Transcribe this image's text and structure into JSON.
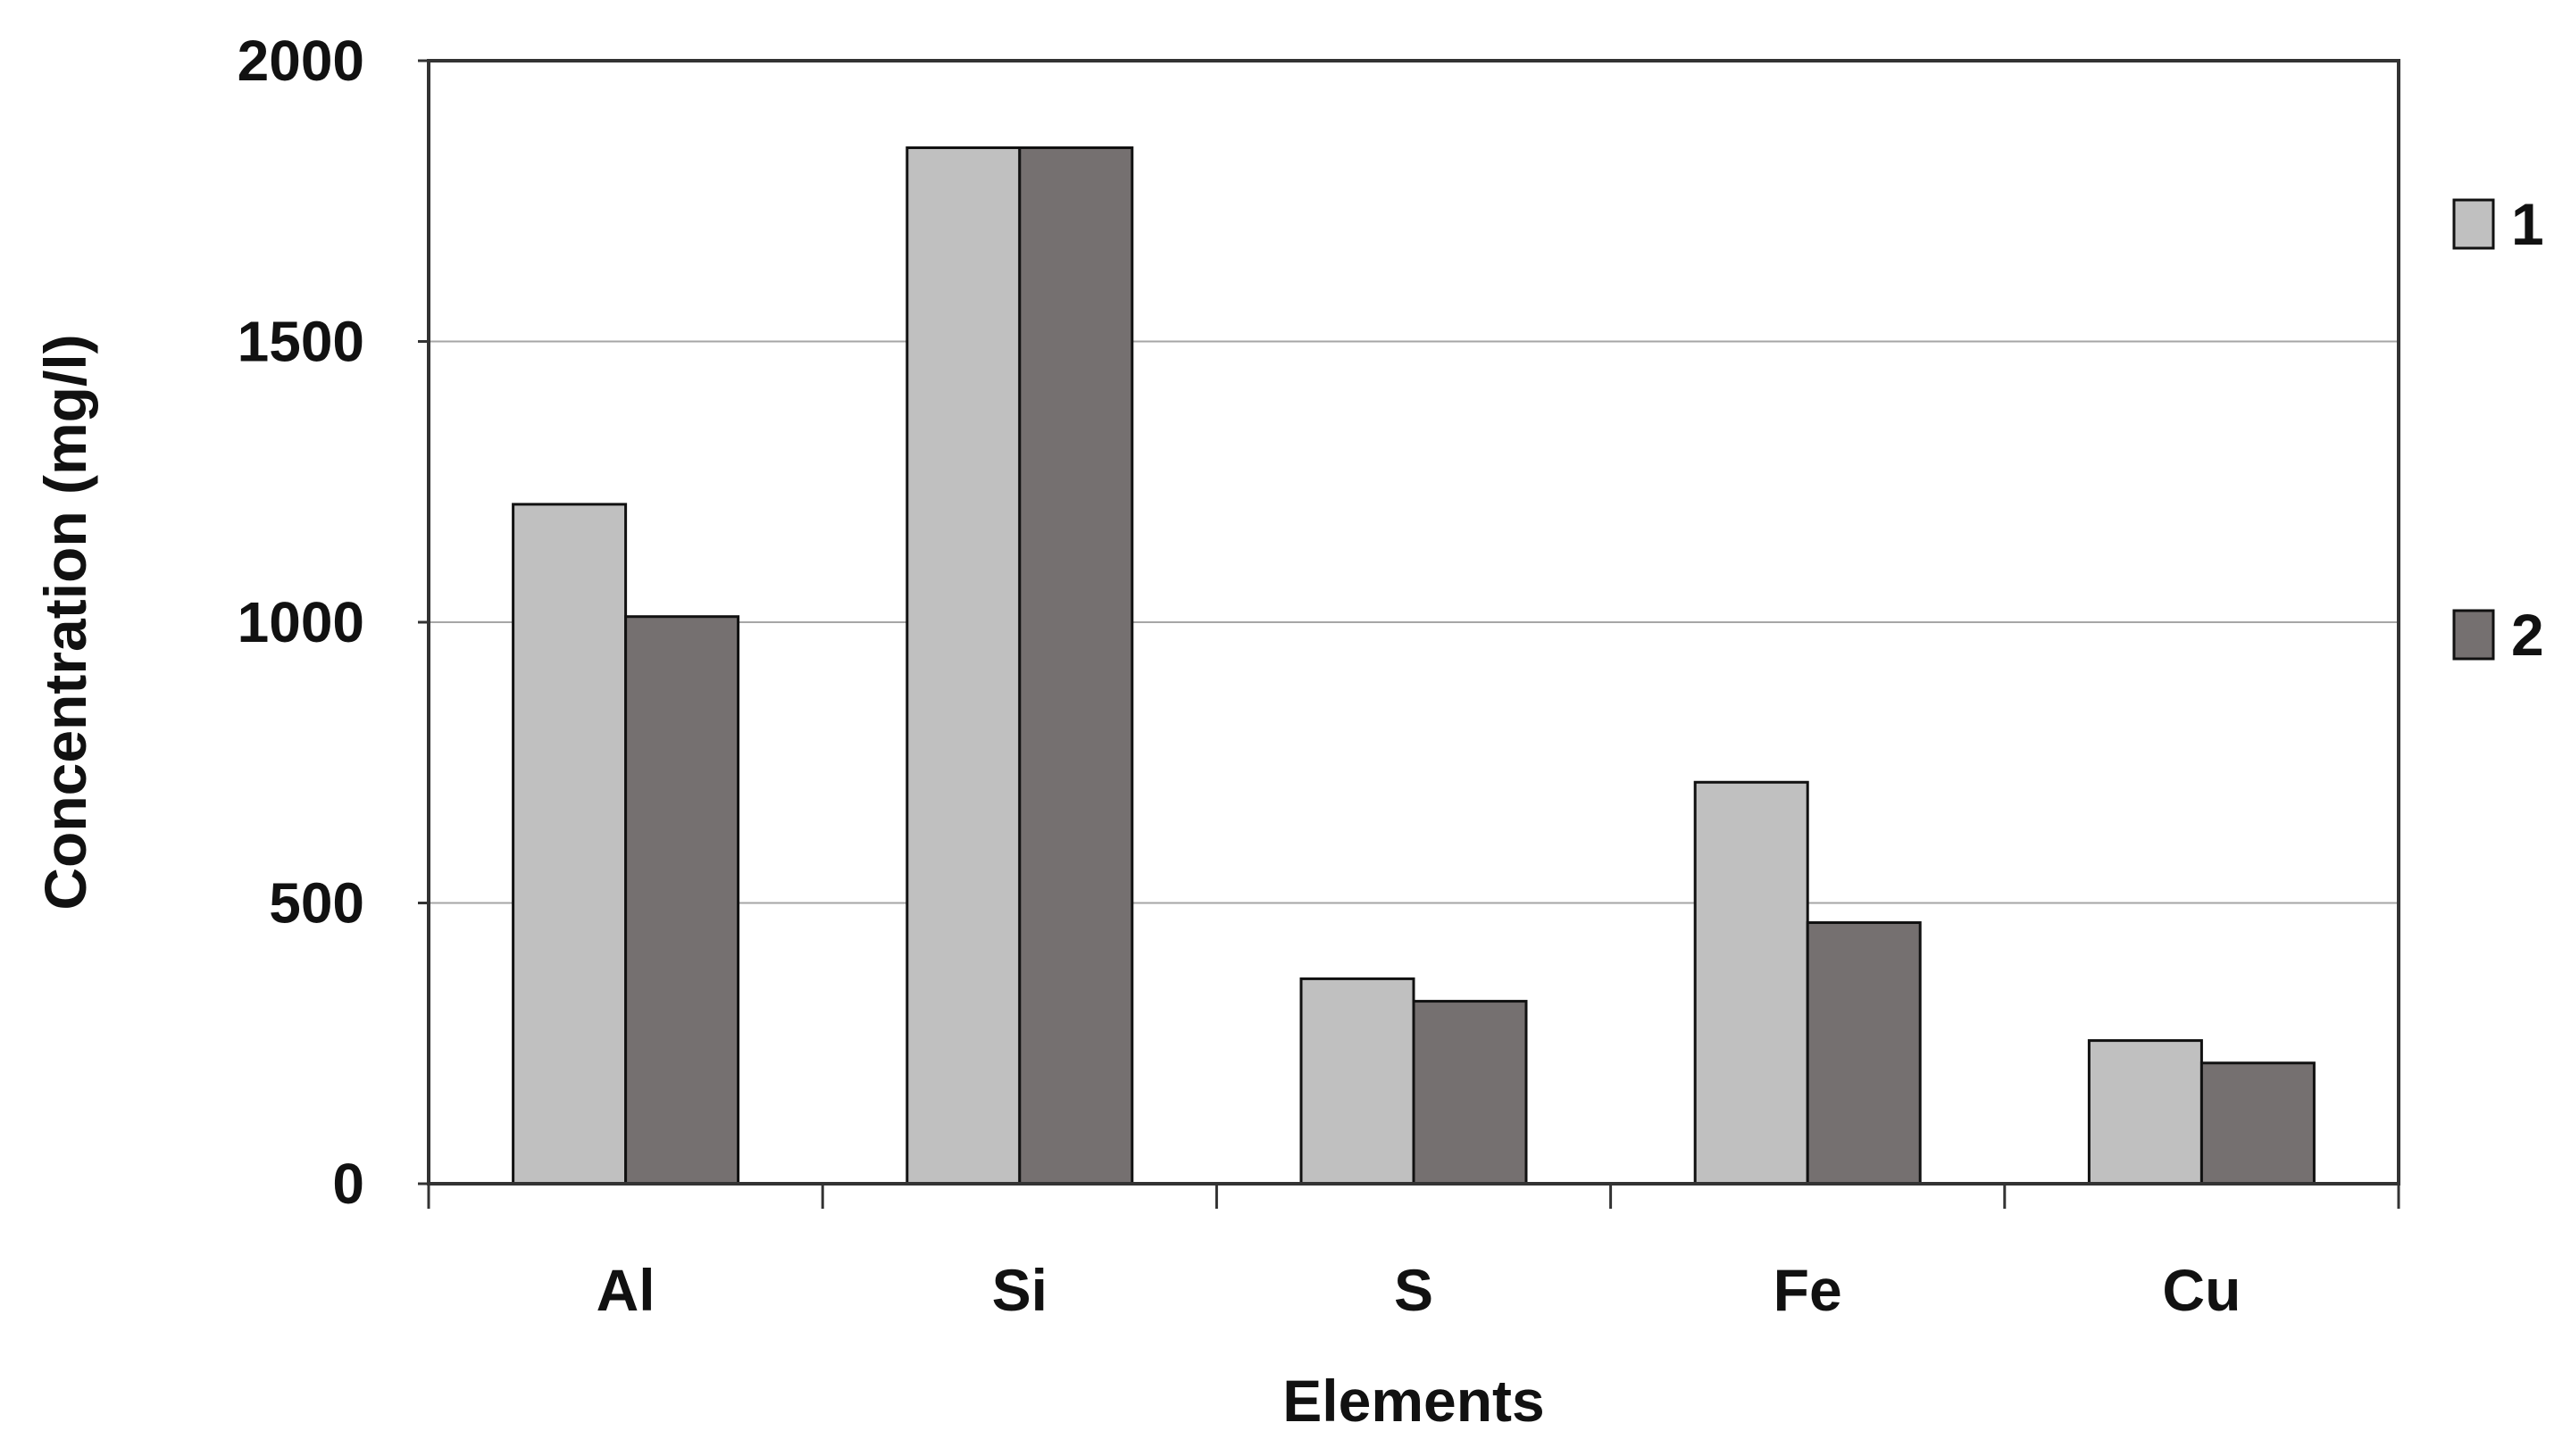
{
  "chart_data": {
    "type": "bar",
    "categories": [
      "Al",
      "Si",
      "S",
      "Fe",
      "Cu"
    ],
    "series": [
      {
        "name": "1",
        "values": [
          1210,
          1845,
          365,
          715,
          255
        ]
      },
      {
        "name": "2",
        "values": [
          1010,
          1845,
          325,
          465,
          215
        ]
      }
    ],
    "title": "",
    "xlabel": "Elements",
    "ylabel": "Concentration (mg/l)",
    "ylim": [
      0,
      2000
    ],
    "yticks": [
      0,
      500,
      1000,
      1500,
      2000
    ],
    "grid": true,
    "legend_position": "right",
    "colors": {
      "series_1": "#c0c0c0",
      "series_2": "#757070",
      "bar_outline": "#111111",
      "gridline": "#a6a6a6",
      "axis": "#333333"
    }
  }
}
